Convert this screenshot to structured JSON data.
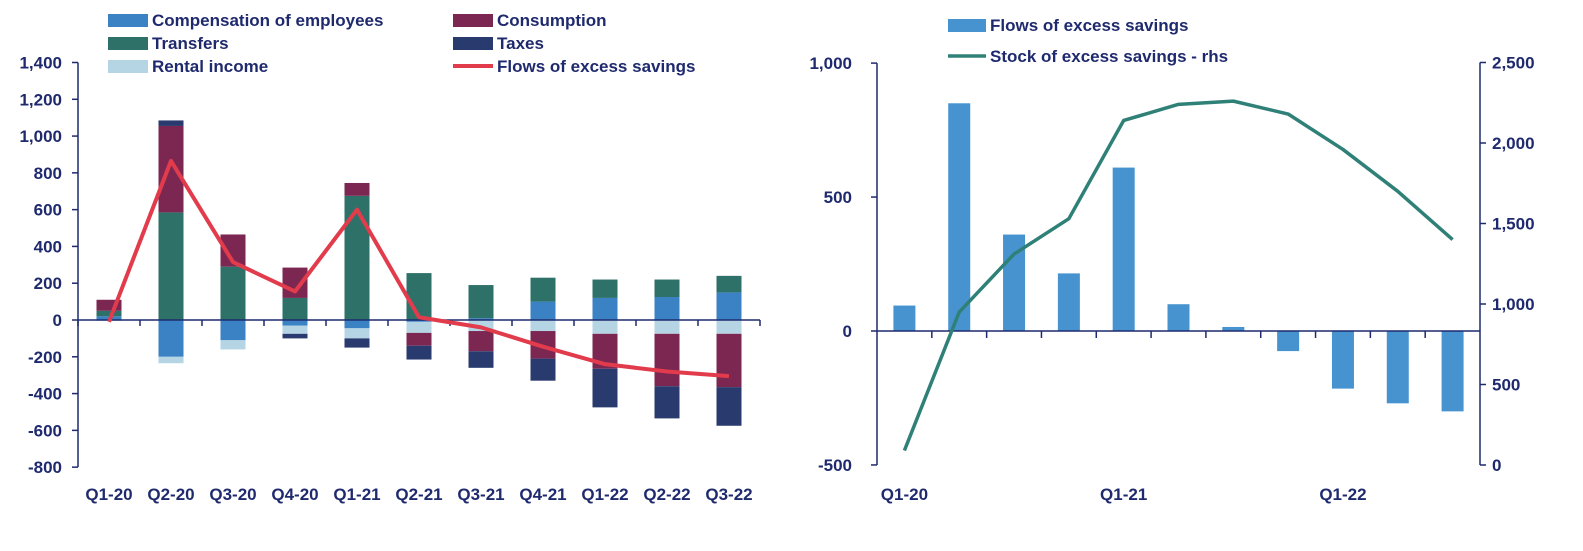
{
  "colors": {
    "axis": "#1f2a6e",
    "compensation": "#3a82c4",
    "transfers": "#2e7168",
    "rental": "#b5d5e5",
    "consumption": "#7b2752",
    "taxes": "#293a6e",
    "flows_line": "#e13b4c",
    "flows_bar": "#4693d0",
    "stock_line": "#2f8077",
    "neg_label": "#e3241b"
  },
  "chart_data": [
    {
      "type": "bar",
      "stacked": true,
      "categories": [
        "Q1-20",
        "Q2-20",
        "Q3-20",
        "Q4-20",
        "Q1-21",
        "Q2-21",
        "Q3-21",
        "Q4-21",
        "Q1-22",
        "Q2-22",
        "Q3-22"
      ],
      "yticks": [
        "1,400",
        "1,200",
        "1,000",
        "800",
        "600",
        "400",
        "200",
        "0",
        "-200",
        "-400",
        "-600",
        "-800"
      ],
      "ylim": [
        -800,
        1400
      ],
      "legend": {
        "compensation": "Compensation of employees",
        "transfers": "Transfers",
        "rental": "Rental income",
        "consumption": "Consumption",
        "taxes": "Taxes",
        "flows": "Flows of excess savings"
      },
      "series": {
        "compensation": [
          20,
          -200,
          -110,
          -30,
          -45,
          -10,
          10,
          100,
          120,
          125,
          150
        ],
        "transfers": [
          30,
          585,
          290,
          120,
          675,
          255,
          180,
          130,
          100,
          95,
          90
        ],
        "rental": [
          -5,
          -35,
          -50,
          -45,
          -55,
          -60,
          -60,
          -60,
          -75,
          -75,
          -75
        ],
        "consumption": [
          60,
          470,
          175,
          165,
          70,
          -70,
          -110,
          -150,
          -190,
          -285,
          -290
        ],
        "taxes": [
          0,
          30,
          0,
          -25,
          -50,
          -75,
          -90,
          -120,
          -210,
          -175,
          -210
        ]
      },
      "flows": [
        -10,
        865,
        315,
        155,
        600,
        15,
        -40,
        -145,
        -240,
        -280,
        -305
      ]
    },
    {
      "type": "bar+line",
      "x_labels": [
        "Q1-20",
        "Q1-21",
        "Q1-22"
      ],
      "periods": 11,
      "left_ticks": [
        "1,000",
        "500",
        "0",
        "-500"
      ],
      "right_ticks": [
        "2,500",
        "2,000",
        "1,500",
        "1,000",
        "500",
        "0"
      ],
      "ylim_left": [
        -500,
        1000
      ],
      "ylim_right": [
        0,
        2500
      ],
      "legend": {
        "bars": "Flows of excess savings",
        "line": "Stock of excess savings - rhs"
      },
      "bars": [
        95,
        850,
        360,
        215,
        610,
        100,
        15,
        -75,
        -215,
        -270,
        -300
      ],
      "line": [
        90,
        950,
        1310,
        1530,
        2140,
        2240,
        2260,
        2180,
        1960,
        1700,
        1400
      ]
    }
  ]
}
